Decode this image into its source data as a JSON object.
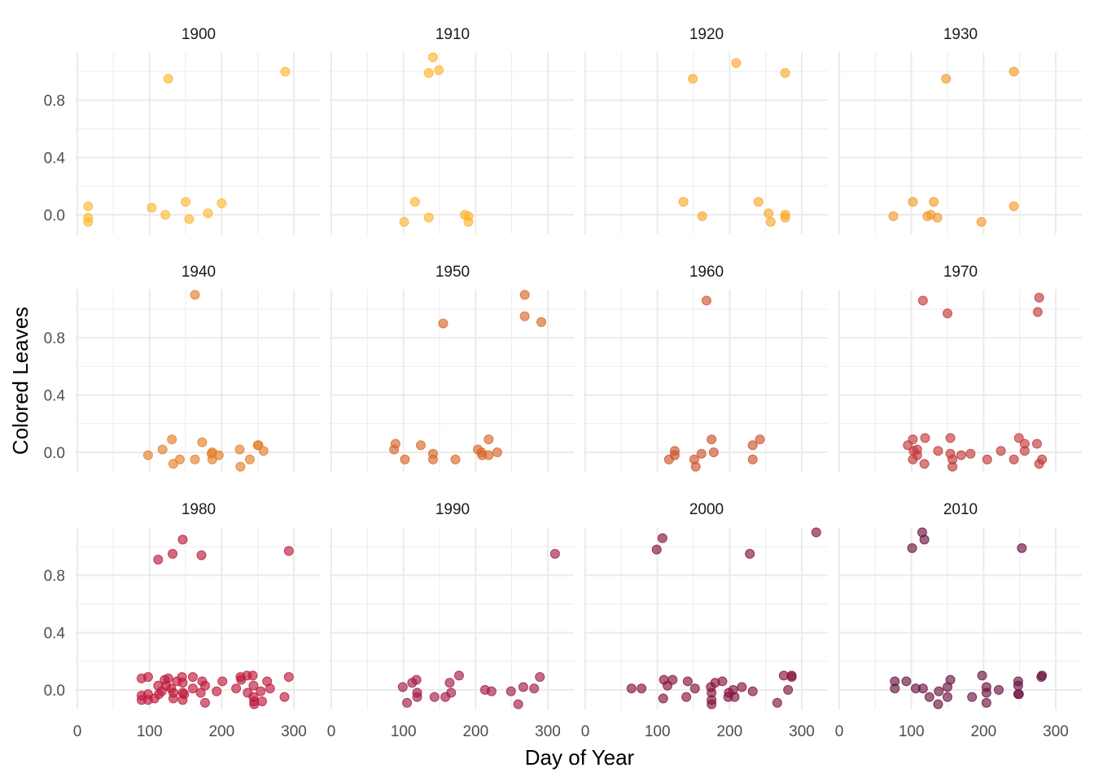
{
  "chart_data": {
    "type": "scatter",
    "title": "",
    "xlabel": "Day of Year",
    "ylabel": "Colored Leaves",
    "xlim": [
      0,
      320
    ],
    "ylim": [
      -0.12,
      1.12
    ],
    "x_ticks": [
      0,
      100,
      200,
      300
    ],
    "x_tick_labels": [
      "0",
      "100",
      "200",
      "300"
    ],
    "y_ticks": [
      0.0,
      0.4,
      0.8
    ],
    "y_tick_labels": [
      "0.0",
      "0.4",
      "0.8"
    ],
    "grid": true,
    "legend": "none",
    "point_alpha": 0.65,
    "facets": [
      {
        "label": "1900",
        "color": "#FDB833",
        "points": [
          [
            15,
            0.06
          ],
          [
            15,
            -0.02
          ],
          [
            15,
            -0.05
          ],
          [
            103,
            0.05
          ],
          [
            122,
            0.0
          ],
          [
            150,
            0.09
          ],
          [
            155,
            -0.03
          ],
          [
            181,
            0.01
          ],
          [
            200,
            0.08
          ],
          [
            126,
            0.95
          ],
          [
            288,
            1.0
          ]
        ]
      },
      {
        "label": "1910",
        "color": "#FDB42F",
        "points": [
          [
            141,
            1.1
          ],
          [
            135,
            0.99
          ],
          [
            149,
            1.01
          ],
          [
            116,
            0.09
          ],
          [
            101,
            -0.05
          ],
          [
            135,
            -0.02
          ],
          [
            185,
            0.0
          ],
          [
            190,
            -0.01
          ],
          [
            190,
            -0.05
          ]
        ]
      },
      {
        "label": "1920",
        "color": "#F9A92E",
        "points": [
          [
            209,
            1.06
          ],
          [
            149,
            0.95
          ],
          [
            277,
            0.99
          ],
          [
            136,
            0.09
          ],
          [
            162,
            -0.01
          ],
          [
            240,
            0.09
          ],
          [
            254,
            0.01
          ],
          [
            257,
            -0.05
          ],
          [
            277,
            0.0
          ],
          [
            277,
            -0.02
          ]
        ]
      },
      {
        "label": "1930",
        "color": "#F29B2D",
        "points": [
          [
            148,
            0.95
          ],
          [
            242,
            1.0
          ],
          [
            102,
            0.09
          ],
          [
            75,
            -0.01
          ],
          [
            131,
            0.09
          ],
          [
            122,
            -0.01
          ],
          [
            127,
            0.0
          ],
          [
            136,
            -0.02
          ],
          [
            197,
            -0.05
          ],
          [
            242,
            0.06
          ]
        ]
      },
      {
        "label": "1940",
        "color": "#E5802A",
        "points": [
          [
            163,
            1.1
          ],
          [
            98,
            -0.02
          ],
          [
            118,
            0.02
          ],
          [
            131,
            0.09
          ],
          [
            133,
            -0.08
          ],
          [
            142,
            -0.05
          ],
          [
            163,
            -0.05
          ],
          [
            173,
            0.07
          ],
          [
            186,
            -0.01
          ],
          [
            187,
            -0.05
          ],
          [
            196,
            -0.02
          ],
          [
            225,
            0.02
          ],
          [
            226,
            -0.1
          ],
          [
            239,
            -0.05
          ],
          [
            250,
            0.05
          ],
          [
            251,
            0.05
          ],
          [
            258,
            0.01
          ],
          [
            187,
            0.0
          ]
        ]
      },
      {
        "label": "1950",
        "color": "#D8682A",
        "points": [
          [
            268,
            1.1
          ],
          [
            268,
            0.95
          ],
          [
            291,
            0.91
          ],
          [
            155,
            0.9
          ],
          [
            89,
            0.06
          ],
          [
            87,
            0.02
          ],
          [
            102,
            -0.05
          ],
          [
            124,
            0.05
          ],
          [
            141,
            -0.01
          ],
          [
            141,
            -0.05
          ],
          [
            172,
            -0.05
          ],
          [
            203,
            0.02
          ],
          [
            208,
            0.0
          ],
          [
            209,
            -0.02
          ],
          [
            218,
            0.09
          ],
          [
            218,
            -0.02
          ],
          [
            230,
            0.0
          ]
        ]
      },
      {
        "label": "1960",
        "color": "#CD552E",
        "points": [
          [
            168,
            1.06
          ],
          [
            175,
            0.09
          ],
          [
            116,
            -0.05
          ],
          [
            124,
            0.01
          ],
          [
            124,
            -0.02
          ],
          [
            161,
            -0.01
          ],
          [
            151,
            -0.05
          ],
          [
            153,
            -0.1
          ],
          [
            178,
            0.0
          ],
          [
            232,
            0.05
          ],
          [
            242,
            0.09
          ],
          [
            232,
            -0.05
          ]
        ]
      },
      {
        "label": "1970",
        "color": "#C33A3A",
        "points": [
          [
            116,
            1.06
          ],
          [
            150,
            0.97
          ],
          [
            277,
            1.08
          ],
          [
            275,
            0.98
          ],
          [
            95,
            0.05
          ],
          [
            102,
            0.09
          ],
          [
            103,
            0.01
          ],
          [
            108,
            0.02
          ],
          [
            108,
            -0.02
          ],
          [
            102,
            -0.05
          ],
          [
            119,
            0.1
          ],
          [
            118,
            -0.08
          ],
          [
            137,
            0.01
          ],
          [
            154,
            0.1
          ],
          [
            154,
            -0.01
          ],
          [
            157,
            -0.05
          ],
          [
            157,
            -0.1
          ],
          [
            169,
            -0.02
          ],
          [
            182,
            -0.01
          ],
          [
            205,
            -0.05
          ],
          [
            224,
            0.01
          ],
          [
            242,
            -0.05
          ],
          [
            249,
            0.1
          ],
          [
            257,
            0.06
          ],
          [
            257,
            0.01
          ],
          [
            274,
            0.06
          ],
          [
            281,
            -0.05
          ],
          [
            277,
            -0.08
          ]
        ]
      },
      {
        "label": "1980",
        "color": "#BE1A3C",
        "points": [
          [
            146,
            1.05
          ],
          [
            132,
            0.95
          ],
          [
            112,
            0.91
          ],
          [
            172,
            0.94
          ],
          [
            293,
            0.97
          ],
          [
            89,
            0.08
          ],
          [
            98,
            0.09
          ],
          [
            89,
            -0.04
          ],
          [
            89,
            -0.07
          ],
          [
            98,
            -0.03
          ],
          [
            98,
            -0.07
          ],
          [
            107,
            -0.06
          ],
          [
            112,
            0.03
          ],
          [
            113,
            -0.03
          ],
          [
            117,
            -0.01
          ],
          [
            121,
            0.07
          ],
          [
            123,
            0.03
          ],
          [
            126,
            0.08
          ],
          [
            130,
            0.01
          ],
          [
            133,
            -0.02
          ],
          [
            133,
            -0.06
          ],
          [
            138,
            0.06
          ],
          [
            145,
            0.09
          ],
          [
            146,
            0.05
          ],
          [
            146,
            -0.02
          ],
          [
            146,
            -0.07
          ],
          [
            148,
            -0.03
          ],
          [
            160,
            0.09
          ],
          [
            160,
            0.01
          ],
          [
            171,
            -0.02
          ],
          [
            173,
            0.06
          ],
          [
            177,
            0.03
          ],
          [
            177,
            -0.09
          ],
          [
            193,
            -0.01
          ],
          [
            201,
            0.06
          ],
          [
            220,
            0.01
          ],
          [
            226,
            0.09
          ],
          [
            227,
            0.07
          ],
          [
            235,
            0.1
          ],
          [
            236,
            -0.02
          ],
          [
            243,
            0.1
          ],
          [
            244,
            0.03
          ],
          [
            244,
            -0.05
          ],
          [
            245,
            -0.08
          ],
          [
            245,
            -0.1
          ],
          [
            254,
            -0.01
          ],
          [
            256,
            -0.08
          ],
          [
            263,
            0.06
          ],
          [
            267,
            0.01
          ],
          [
            287,
            -0.05
          ],
          [
            293,
            0.09
          ]
        ]
      },
      {
        "label": "1990",
        "color": "#A31C4C",
        "points": [
          [
            310,
            0.95
          ],
          [
            99,
            0.02
          ],
          [
            105,
            -0.09
          ],
          [
            112,
            0.05
          ],
          [
            118,
            0.07
          ],
          [
            119,
            -0.02
          ],
          [
            119,
            -0.05
          ],
          [
            143,
            -0.05
          ],
          [
            158,
            -0.05
          ],
          [
            166,
            -0.02
          ],
          [
            164,
            0.05
          ],
          [
            177,
            0.1
          ],
          [
            213,
            0.0
          ],
          [
            222,
            -0.01
          ],
          [
            249,
            -0.01
          ],
          [
            259,
            -0.1
          ],
          [
            266,
            0.02
          ],
          [
            281,
            0.01
          ],
          [
            289,
            0.09
          ]
        ]
      },
      {
        "label": "2000",
        "color": "#84143F",
        "points": [
          [
            107,
            1.06
          ],
          [
            99,
            0.98
          ],
          [
            228,
            0.95
          ],
          [
            320,
            1.1
          ],
          [
            64,
            0.01
          ],
          [
            78,
            0.01
          ],
          [
            108,
            -0.06
          ],
          [
            109,
            0.07
          ],
          [
            114,
            0.03
          ],
          [
            121,
            0.07
          ],
          [
            140,
            -0.05
          ],
          [
            142,
            0.06
          ],
          [
            152,
            0.01
          ],
          [
            174,
            0.02
          ],
          [
            175,
            -0.02
          ],
          [
            175,
            -0.07
          ],
          [
            175,
            -0.1
          ],
          [
            180,
            0.05
          ],
          [
            190,
            0.06
          ],
          [
            198,
            -0.05
          ],
          [
            199,
            -0.02
          ],
          [
            205,
            0.0
          ],
          [
            207,
            -0.05
          ],
          [
            217,
            0.02
          ],
          [
            232,
            -0.01
          ],
          [
            266,
            -0.09
          ],
          [
            275,
            0.1
          ],
          [
            281,
            0.0
          ],
          [
            286,
            0.09
          ],
          [
            286,
            0.1
          ]
        ]
      },
      {
        "label": "2010",
        "color": "#6A1540",
        "points": [
          [
            115,
            1.1
          ],
          [
            118,
            1.05
          ],
          [
            101,
            0.99
          ],
          [
            253,
            0.99
          ],
          [
            77,
            0.06
          ],
          [
            77,
            0.01
          ],
          [
            93,
            0.06
          ],
          [
            106,
            0.01
          ],
          [
            116,
            0.01
          ],
          [
            125,
            -0.05
          ],
          [
            137,
            -0.1
          ],
          [
            138,
            -0.01
          ],
          [
            150,
            -0.05
          ],
          [
            150,
            0.02
          ],
          [
            154,
            0.07
          ],
          [
            184,
            -0.05
          ],
          [
            198,
            0.1
          ],
          [
            204,
            0.02
          ],
          [
            204,
            -0.02
          ],
          [
            204,
            -0.09
          ],
          [
            221,
            0.0
          ],
          [
            248,
            0.06
          ],
          [
            248,
            0.03
          ],
          [
            248,
            -0.03
          ],
          [
            249,
            -0.03
          ],
          [
            281,
            0.1
          ],
          [
            280,
            0.09
          ]
        ]
      }
    ]
  }
}
